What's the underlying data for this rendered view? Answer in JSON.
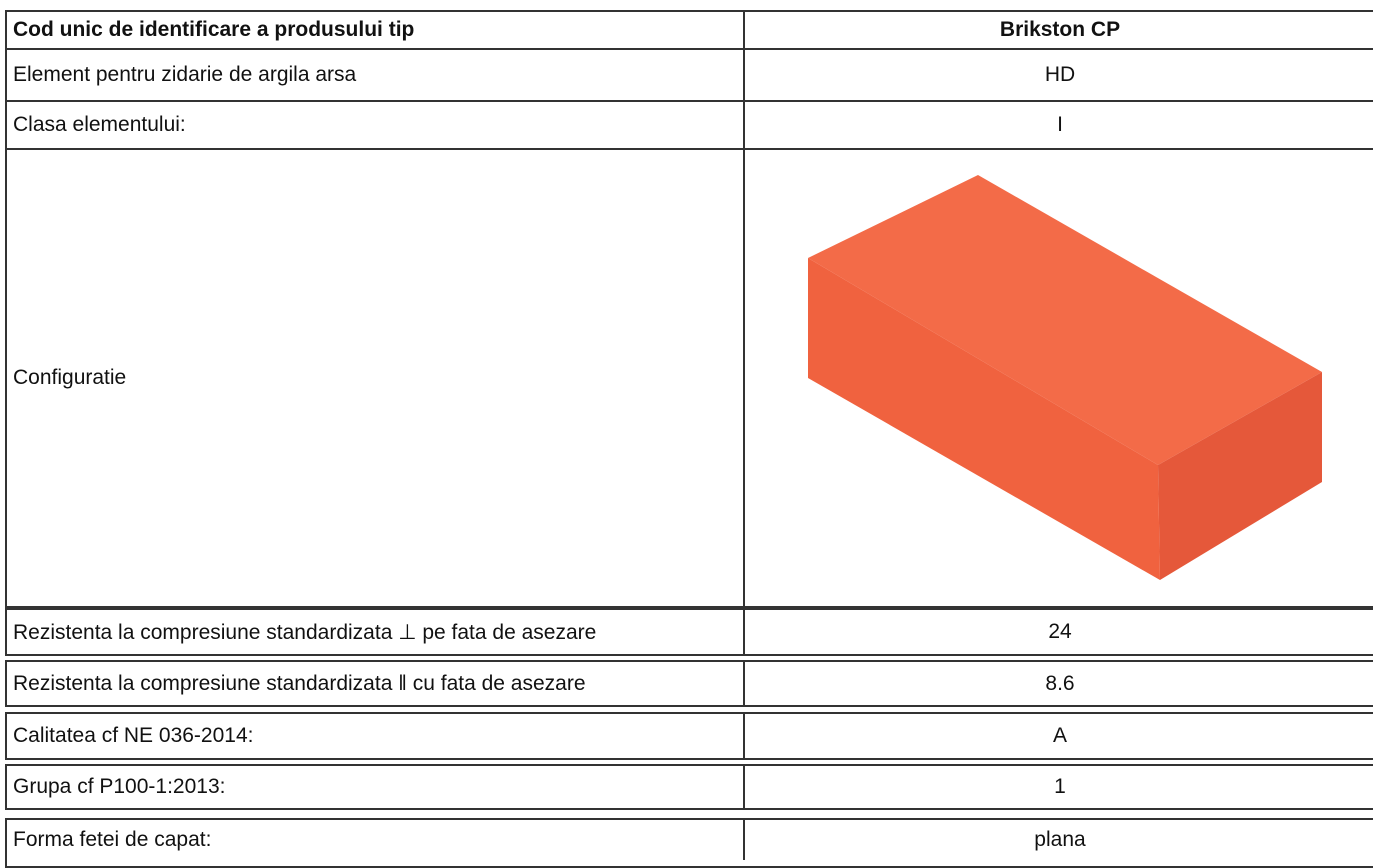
{
  "table": {
    "header": [
      "Cod unic de identificare a produsului tip",
      "Brikston CP"
    ],
    "rows": [
      [
        "Element pentru zidarie de argila arsa",
        "HD"
      ],
      [
        "Clasa elementului:",
        "I"
      ],
      [
        "Configuratie",
        ""
      ],
      [
        "Rezistenta la compresiune standardizata ⊥ pe fata de asezare",
        "24"
      ],
      [
        "Rezistenta la compresiune standardizata ǁ cu fata de asezare",
        "8.6"
      ],
      [
        "Calitatea cf NE 036-2014:",
        "A"
      ],
      [
        "Grupa cf P100-1:2013:",
        "1"
      ],
      [
        "Forma fetei de capat:",
        "plana"
      ]
    ]
  }
}
